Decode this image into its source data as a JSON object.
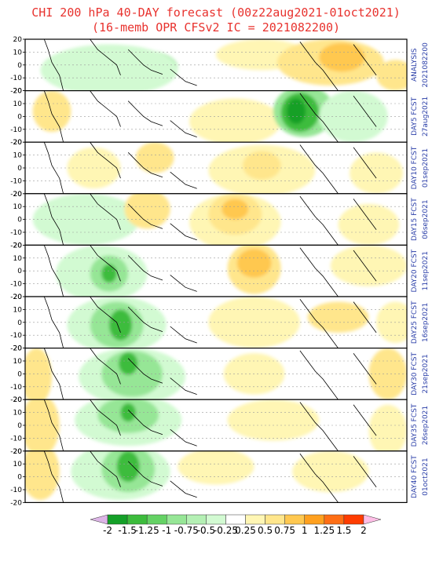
{
  "header": {
    "title_line1": "CHI 200 hPa 40-DAY forecast (00z22aug2021-01oct2021)",
    "title_line2": "(16-memb OPR CFSv2 IC = 2021082200)"
  },
  "y_ticks": [
    "20",
    "10",
    "0",
    "-10",
    "-20"
  ],
  "panels": [
    {
      "label1": "ANALYSIS",
      "label2": "2021082200"
    },
    {
      "label1": "DAY5 FCST",
      "label2": "27aug2021"
    },
    {
      "label1": "DAY10 FCST",
      "label2": "01sep2021"
    },
    {
      "label1": "DAY15 FCST",
      "label2": "06sep2021"
    },
    {
      "label1": "DAY20 FCST",
      "label2": "11sep2021"
    },
    {
      "label1": "DAY25 FCST",
      "label2": "16sep2021"
    },
    {
      "label1": "DAY30 FCST",
      "label2": "21sep2021"
    },
    {
      "label1": "DAY35 FCST",
      "label2": "26sep2021"
    },
    {
      "label1": "DAY40 FCST",
      "label2": "01oct2021"
    }
  ],
  "colorbar": {
    "labels": [
      "-2",
      "-1.5",
      "-1.25",
      "-1",
      "-0.75",
      "-0.5",
      "-0.25",
      "0.25",
      "0.5",
      "0.75",
      "1",
      "1.25",
      "1.5",
      "2"
    ],
    "colors": [
      "#dcb4e6",
      "#14a028",
      "#3cbc3c",
      "#64d264",
      "#96e696",
      "#b4f0b4",
      "#d2fad2",
      "#ffffff",
      "#fff6b4",
      "#ffe68c",
      "#ffc850",
      "#ffa01e",
      "#ff6e14",
      "#ff3c00",
      "#ffbee6"
    ]
  },
  "field_colors": {
    "neg_strong": "#14a028",
    "neg_mid": "#3cbc3c",
    "neg_weak": "#96e696",
    "neg_faint": "#d2fad2",
    "pos_faint": "#fff6b4",
    "pos_weak": "#ffe68c",
    "pos_mid": "#ffc850",
    "pos_strong": "#ffa01e"
  }
}
